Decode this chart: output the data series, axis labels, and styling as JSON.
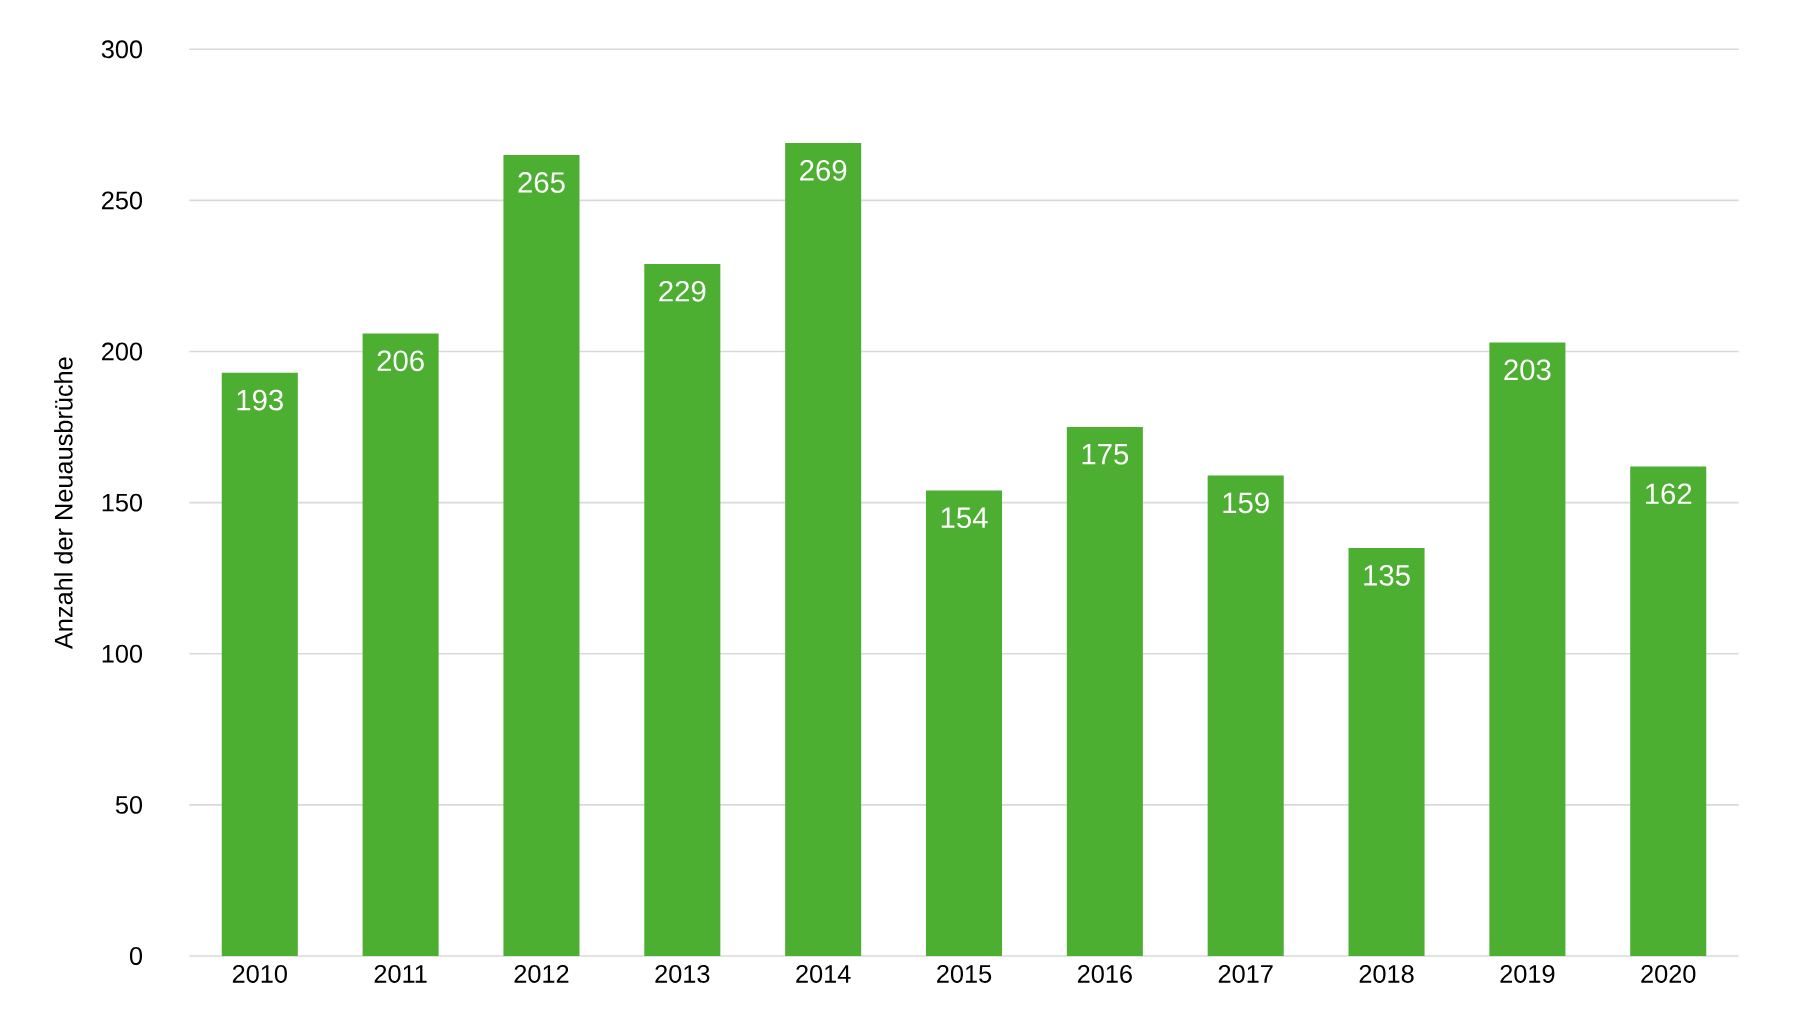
{
  "chart_data": {
    "type": "bar",
    "ylabel": "Anzahl der Neuausbrüche",
    "categories": [
      "2010",
      "2011",
      "2012",
      "2013",
      "2014",
      "2015",
      "2016",
      "2017",
      "2018",
      "2019",
      "2020"
    ],
    "values": [
      193,
      206,
      265,
      229,
      269,
      154,
      175,
      159,
      135,
      203,
      162
    ],
    "color": "#4daf32",
    "ylim": [
      0,
      300
    ],
    "yticks": [
      0,
      50,
      100,
      150,
      200,
      250,
      300
    ],
    "grid": "y",
    "data_labels": true
  }
}
